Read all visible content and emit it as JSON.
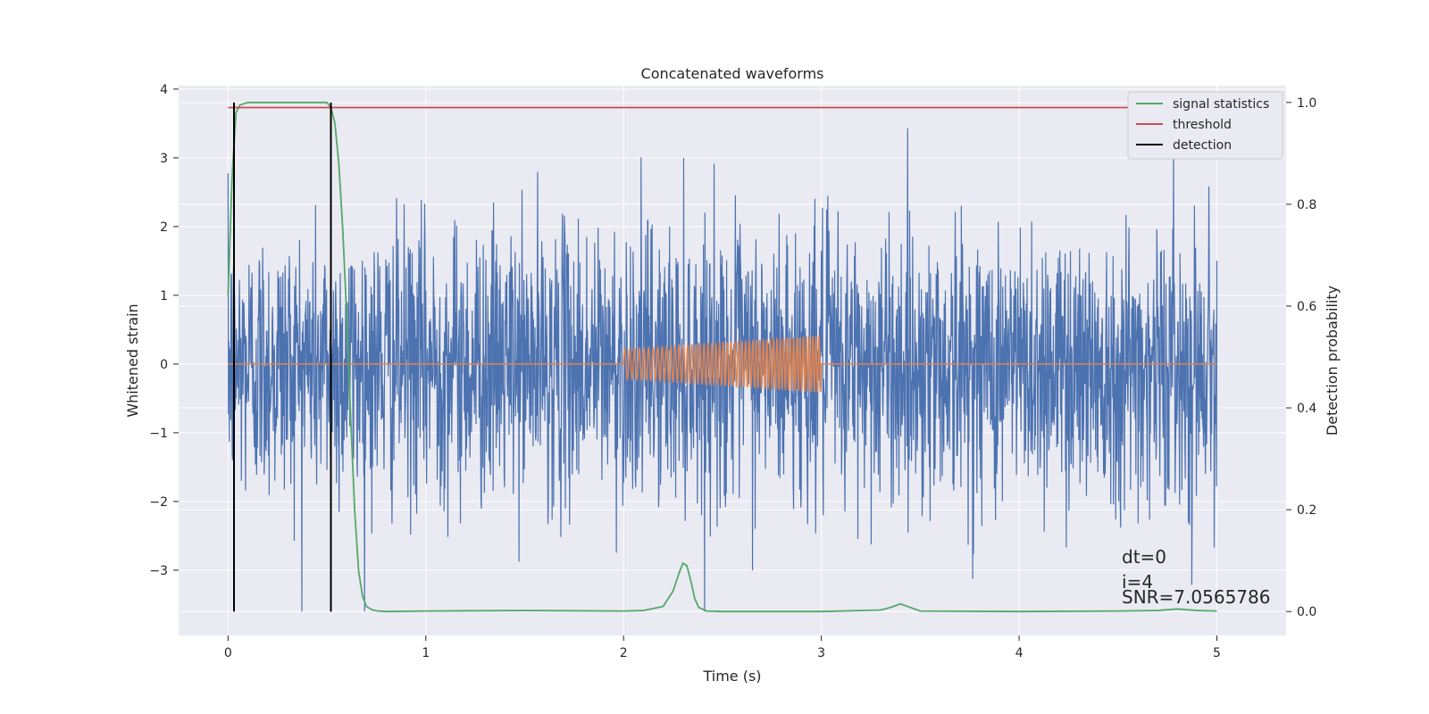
{
  "chart_data": {
    "type": "line",
    "title": "Concatenated waveforms",
    "xlabel": "Time (s)",
    "ylabel": "Whitened strain",
    "y2label": "Detection probability",
    "xlim": [
      -0.25,
      5.35
    ],
    "ylim": [
      -3.95,
      4.05
    ],
    "y2lim": [
      -0.047,
      1.033
    ],
    "xticks": [
      0,
      1,
      2,
      3,
      4,
      5
    ],
    "yticks": [
      -3,
      -2,
      -1,
      0,
      1,
      2,
      3,
      4
    ],
    "y2ticks": [
      0.0,
      0.2,
      0.4,
      0.6,
      0.8,
      1.0
    ],
    "grid": true,
    "legend_location": "top-right",
    "legend": [
      "signal statistics",
      "threshold",
      "detection"
    ],
    "series": [
      {
        "kind": "noise",
        "axis": "left",
        "color": "#4c72b0",
        "x_range": [
          0,
          5
        ],
        "amplitude_std": 1.0,
        "peak_range": [
          -3.6,
          3.7
        ]
      },
      {
        "kind": "chirp",
        "axis": "left",
        "color": "#dd8452",
        "x_range": [
          0,
          5
        ],
        "active_range": [
          2,
          3
        ],
        "start_amplitude": 0.22,
        "end_amplitude": 0.42
      },
      {
        "name": "signal statistics",
        "axis": "right",
        "color": "#55a868",
        "x": [
          0.0,
          0.02,
          0.04,
          0.06,
          0.1,
          0.15,
          0.2,
          0.3,
          0.4,
          0.45,
          0.5,
          0.52,
          0.54,
          0.56,
          0.58,
          0.6,
          0.62,
          0.64,
          0.66,
          0.68,
          0.7,
          0.73,
          0.76,
          0.8,
          1.0,
          1.5,
          2.0,
          2.1,
          2.2,
          2.25,
          2.28,
          2.3,
          2.32,
          2.34,
          2.36,
          2.38,
          2.42,
          2.5,
          3.0,
          3.3,
          3.35,
          3.4,
          3.45,
          3.5,
          4.0,
          4.5,
          4.7,
          4.8,
          4.9,
          5.0
        ],
        "y": [
          0.62,
          0.85,
          0.98,
          0.995,
          1.0,
          1.0,
          1.0,
          1.0,
          1.0,
          1.0,
          1.0,
          0.99,
          0.96,
          0.88,
          0.75,
          0.58,
          0.38,
          0.2,
          0.08,
          0.03,
          0.01,
          0.003,
          0.001,
          0.0,
          0.001,
          0.002,
          0.001,
          0.002,
          0.01,
          0.04,
          0.075,
          0.095,
          0.09,
          0.06,
          0.025,
          0.008,
          0.001,
          0.0,
          0.0,
          0.003,
          0.008,
          0.015,
          0.008,
          0.001,
          0.0,
          0.001,
          0.002,
          0.005,
          0.002,
          0.001
        ]
      },
      {
        "name": "threshold",
        "axis": "right",
        "color": "#c44e52",
        "x": [
          0,
          5
        ],
        "y": [
          0.99,
          0.99
        ]
      },
      {
        "name": "detection",
        "axis": "right",
        "color": "#000000",
        "type": "vlines",
        "x": [
          0.03,
          0.52
        ],
        "y_range": [
          0.0,
          1.0
        ]
      }
    ],
    "annotations": [
      "dt=0",
      "i=4",
      "SNR=7.0565786"
    ]
  }
}
